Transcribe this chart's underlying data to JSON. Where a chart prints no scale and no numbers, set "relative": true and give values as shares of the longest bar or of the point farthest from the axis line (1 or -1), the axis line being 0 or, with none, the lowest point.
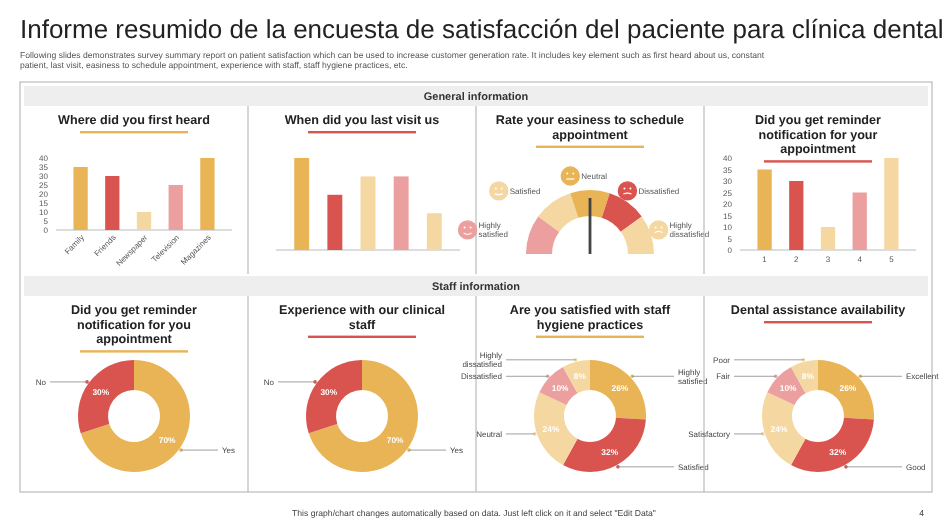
{
  "chart_data": [
    {
      "type": "bar",
      "title": "Where did you first heard",
      "categories": [
        "Family",
        "Friends",
        "Newspaper",
        "Television",
        "Magazines"
      ],
      "values": [
        35,
        30,
        10,
        25,
        40
      ],
      "colors": [
        "#e8b455",
        "#d9534f",
        "#f5d7a1",
        "#eb9f9f",
        "#e8b455"
      ],
      "ylim": [
        0,
        40
      ],
      "yticks": [
        0,
        5,
        10,
        15,
        20,
        25,
        30,
        35,
        40
      ],
      "annotations": [
        "Informe resumido de la encuesta de satisfacción del paciente para clínica dental",
        "Following slides demonstrates survey summary report on patient satisfaction which can be used to increase customer generation rate. It includes key element such as first heard about us, constant patient, last visit, easiness to schedule appointment, experience with staff, staff hygiene practices, etc.",
        "General information"
      ]
    },
    {
      "type": "bar",
      "title": "When did you last visit us",
      "categories": [
        null,
        null,
        null,
        null,
        null
      ],
      "relative": true,
      "values": [
        1,
        0.6,
        0.8,
        0.8,
        0.4
      ],
      "colors": [
        "#e8b455",
        "#d9534f",
        "#f5d7a1",
        "#eb9f9f",
        "#f5d7a1"
      ]
    },
    {
      "type": "donut",
      "title": "Rate your easiness to schedule appointment",
      "categories": [
        "Highly satisfied",
        "Satisfied",
        "Neutral",
        "Dissatisfied",
        "Highly dissatisfied"
      ],
      "values": [
        20,
        20,
        20,
        20,
        20
      ],
      "colors": [
        "#eb9f9f",
        "#f5d7a1",
        "#e8b455",
        "#d9534f",
        "#f5d7a1"
      ],
      "needle": "Neutral",
      "legend": "top"
    },
    {
      "type": "bar",
      "title": "Did you get reminder notification for your appointment",
      "categories": [
        "1",
        "2",
        "3",
        "4",
        "5"
      ],
      "values": [
        35,
        30,
        10,
        25,
        40
      ],
      "colors": [
        "#e8b455",
        "#d9534f",
        "#f5d7a1",
        "#eb9f9f",
        "#f5d7a1"
      ],
      "ylim": [
        0,
        40
      ],
      "yticks": [
        0,
        5,
        10,
        15,
        20,
        25,
        30,
        35,
        40
      ]
    },
    {
      "type": "donut",
      "title": "Did you get reminder notification for you appointment",
      "categories": [
        "Yes",
        "No"
      ],
      "values": [
        70,
        30
      ],
      "colors": [
        "#e8b455",
        "#d9534f"
      ],
      "value_labels": [
        "70%",
        "30%"
      ],
      "annotations": [
        "Staff information"
      ]
    },
    {
      "type": "donut",
      "title": "Experience with our clinical staff",
      "categories": [
        "Yes",
        "No"
      ],
      "values": [
        70,
        30
      ],
      "colors": [
        "#e8b455",
        "#d9534f"
      ],
      "value_labels": [
        "70%",
        "30%"
      ]
    },
    {
      "type": "donut",
      "title": "Are you satisfied with staff hygiene practices",
      "categories": [
        "Highly satisfied",
        "Satisfied",
        "Neutral",
        "Dissatisfied",
        "Highly dissatisfied"
      ],
      "values": [
        26,
        32,
        24,
        10,
        8
      ],
      "colors": [
        "#e8b455",
        "#d9534f",
        "#f5d7a1",
        "#eb9f9f",
        "#f5d7a1"
      ],
      "value_labels": [
        "26%",
        "32%",
        "24%",
        "10%",
        "8%"
      ]
    },
    {
      "type": "donut",
      "title": "Dental assistance availability",
      "categories": [
        "Excellent",
        "Good",
        "Satisfactory",
        "Fair",
        "Poor"
      ],
      "values": [
        26,
        32,
        24,
        10,
        8
      ],
      "colors": [
        "#e8b455",
        "#d9534f",
        "#f5d7a1",
        "#eb9f9f",
        "#f5d7a1"
      ],
      "value_labels": [
        "26%",
        "32%",
        "24%",
        "10%",
        "8%"
      ],
      "annotations": [
        "This graph/chart changes automatically based on data. Just left click on it and select \"Edit Data\"",
        "4"
      ]
    }
  ]
}
